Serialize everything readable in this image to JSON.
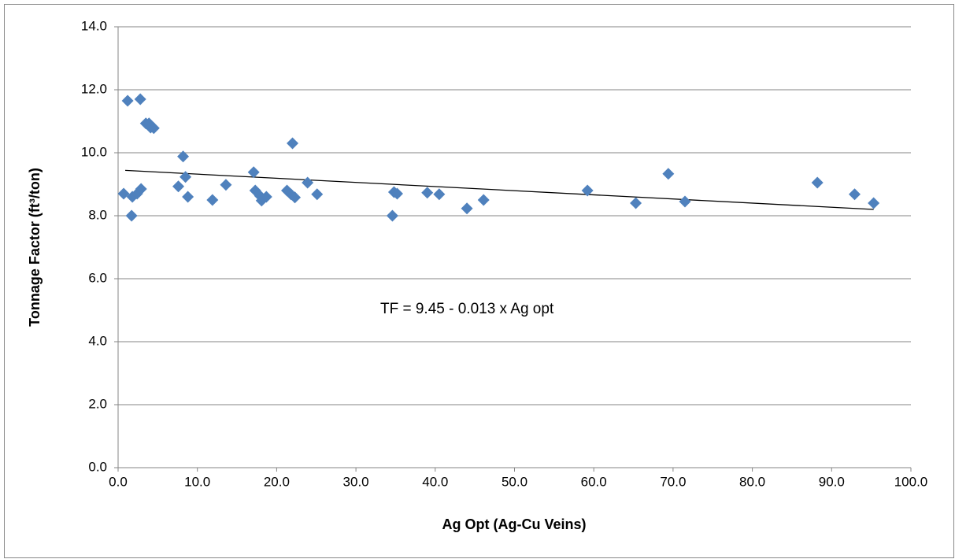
{
  "chart_data": {
    "type": "scatter",
    "x_label": "Ag Opt (Ag-Cu Veins)",
    "y_label": "Tonnage Factor (ft³/ton)",
    "annotation": "TF = 9.45 - 0.013 x Ag opt",
    "color": "#4f81bd",
    "x": [
      0.7,
      1.2,
      1.7,
      1.8,
      2.4,
      2.8,
      2.9,
      3.5,
      3.9,
      4.1,
      4.5,
      7.6,
      8.2,
      8.5,
      8.8,
      11.9,
      13.6,
      17.1,
      17.3,
      17.9,
      18.1,
      18.7,
      21.3,
      21.8,
      22.0,
      22.3,
      23.9,
      25.1,
      34.6,
      34.8,
      35.2,
      39.0,
      40.5,
      44.0,
      46.1,
      59.2,
      65.3,
      69.4,
      71.5,
      88.2,
      92.9,
      95.3
    ],
    "values": [
      8.7,
      11.65,
      8.0,
      8.6,
      8.7,
      11.7,
      8.85,
      10.93,
      10.93,
      10.8,
      10.78,
      8.93,
      9.88,
      9.23,
      8.6,
      8.5,
      8.98,
      9.38,
      8.8,
      8.63,
      8.48,
      8.6,
      8.8,
      8.68,
      10.3,
      8.58,
      9.05,
      8.68,
      8.0,
      8.75,
      8.7,
      8.73,
      8.68,
      8.23,
      8.5,
      8.8,
      8.4,
      9.33,
      8.45,
      9.05,
      8.68,
      8.4
    ],
    "trendline": {
      "x": [
        0.9,
        95.3
      ],
      "values": [
        9.44,
        8.2
      ],
      "color": "#000000"
    },
    "xlim": [
      0,
      100
    ],
    "ylim": [
      0,
      14
    ],
    "xticks": [
      {
        "value": 0,
        "label": "0.0"
      },
      {
        "value": 10,
        "label": "10.0"
      },
      {
        "value": 20,
        "label": "20.0"
      },
      {
        "value": 30,
        "label": "30.0"
      },
      {
        "value": 40,
        "label": "40.0"
      },
      {
        "value": 50,
        "label": "50.0"
      },
      {
        "value": 60,
        "label": "60.0"
      },
      {
        "value": 70,
        "label": "70.0"
      },
      {
        "value": 80,
        "label": "80.0"
      },
      {
        "value": 90,
        "label": "90.0"
      },
      {
        "value": 100,
        "label": "100.0"
      }
    ],
    "yticks": [
      {
        "value": 0,
        "label": "0.0"
      },
      {
        "value": 2,
        "label": "2.0"
      },
      {
        "value": 4,
        "label": "4.0"
      },
      {
        "value": 6,
        "label": "6.0"
      },
      {
        "value": 8,
        "label": "8.0"
      },
      {
        "value": 10,
        "label": "10.0"
      },
      {
        "value": 12,
        "label": "12.0"
      },
      {
        "value": 14,
        "label": "14.0"
      }
    ],
    "grid": true
  }
}
